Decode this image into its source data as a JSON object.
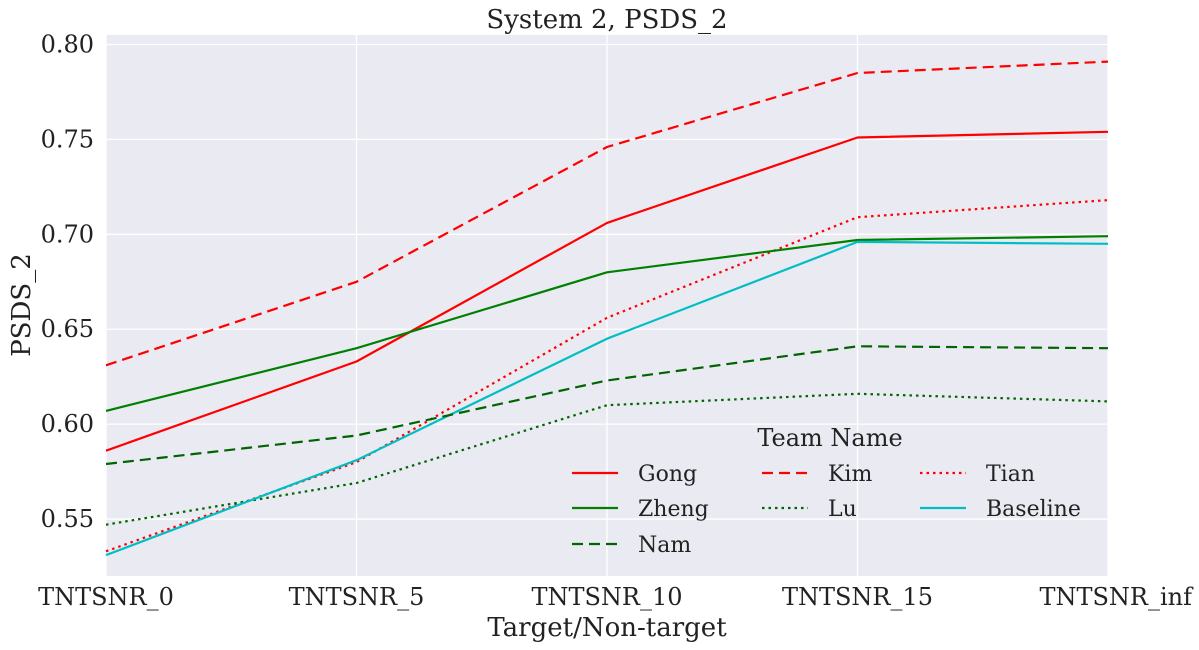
{
  "chart_data": {
    "type": "line",
    "title": "System 2, PSDS_2",
    "xlabel": "Target/Non-target",
    "ylabel": "PSDS_2",
    "categories": [
      "TNTSNR_0",
      "TNTSNR_5",
      "TNTSNR_10",
      "TNTSNR_15",
      "TNTSNR_inf"
    ],
    "ylim": [
      0.52,
      0.805
    ],
    "yticks": [
      0.55,
      0.6,
      0.65,
      0.7,
      0.75,
      0.8
    ],
    "ytick_labels": [
      "0.55",
      "0.60",
      "0.65",
      "0.70",
      "0.75",
      "0.80"
    ],
    "grid": true,
    "legend": {
      "title": "Team Name",
      "placement": "lower-right"
    },
    "series": [
      {
        "name": "Gong",
        "color": "#ff0000",
        "style": "solid",
        "values": [
          0.586,
          0.633,
          0.706,
          0.751,
          0.754
        ]
      },
      {
        "name": "Kim",
        "color": "#ff0000",
        "style": "dashed",
        "values": [
          0.631,
          0.675,
          0.746,
          0.785,
          0.791
        ]
      },
      {
        "name": "Tian",
        "color": "#ff0000",
        "style": "dotted",
        "values": [
          0.533,
          0.58,
          0.656,
          0.709,
          0.718
        ]
      },
      {
        "name": "Zheng",
        "color": "#008000",
        "style": "solid",
        "values": [
          0.607,
          0.64,
          0.68,
          0.697,
          0.699
        ]
      },
      {
        "name": "Lu",
        "color": "#006400",
        "style": "dotted",
        "values": [
          0.547,
          0.569,
          0.61,
          0.616,
          0.612
        ]
      },
      {
        "name": "Baseline",
        "color": "#00bfc4",
        "style": "solid",
        "values": [
          0.531,
          0.581,
          0.645,
          0.696,
          0.695
        ]
      },
      {
        "name": "Nam",
        "color": "#006400",
        "style": "dashed",
        "values": [
          0.579,
          0.594,
          0.623,
          0.641,
          0.64
        ]
      }
    ]
  }
}
